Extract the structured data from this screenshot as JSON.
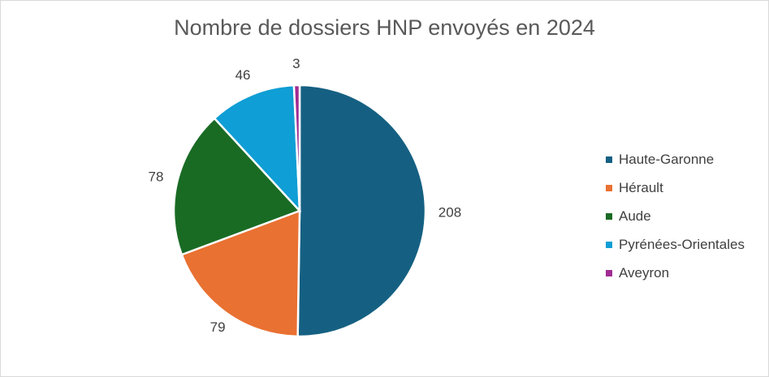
{
  "chart_data": {
    "type": "pie",
    "title": "Nombre de dossiers HNP envoyés en 2024",
    "categories": [
      "Haute-Garonne",
      "Hérault",
      "Aude",
      "Pyrénées-Orientales",
      "Aveyron"
    ],
    "values": [
      208,
      79,
      78,
      46,
      3
    ],
    "data_labels": [
      "208",
      "79",
      "78",
      "46",
      "3"
    ],
    "colors": [
      "#156082",
      "#E97132",
      "#196B24",
      "#0F9ED5",
      "#A02B93"
    ],
    "legend_position": "right",
    "start_angle": "top, clockwise"
  }
}
